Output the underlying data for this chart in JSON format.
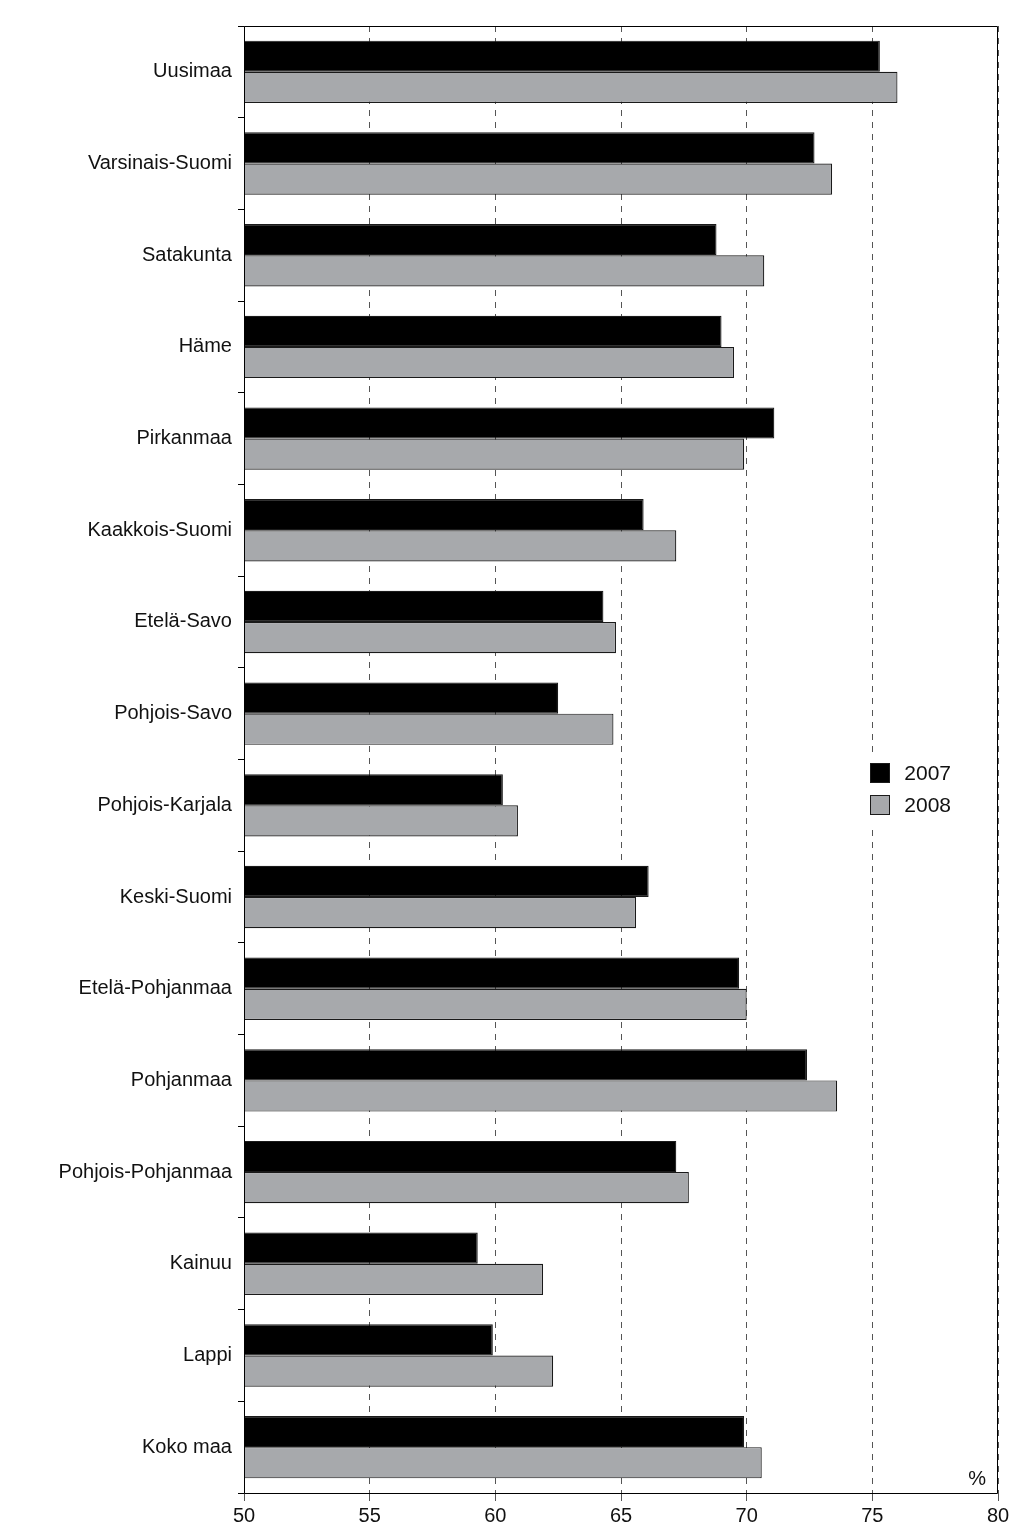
{
  "chart_data": {
    "type": "bar",
    "orientation": "horizontal",
    "xlabel": "%",
    "categories": [
      "Uusimaa",
      "Varsinais-Suomi",
      "Satakunta",
      "Häme",
      "Pirkanmaa",
      "Kaakkois-Suomi",
      "Etelä-Savo",
      "Pohjois-Savo",
      "Pohjois-Karjala",
      "Keski-Suomi",
      "Etelä-Pohjanmaa",
      "Pohjanmaa",
      "Pohjois-Pohjanmaa",
      "Kainuu",
      "Lappi",
      "Koko maa"
    ],
    "series": [
      {
        "name": "2007",
        "color": "#000000",
        "values": [
          75.3,
          72.7,
          68.8,
          69.0,
          71.1,
          65.9,
          64.3,
          62.5,
          60.3,
          66.1,
          69.7,
          72.4,
          67.2,
          59.3,
          59.9,
          69.9
        ]
      },
      {
        "name": "2008",
        "color": "#a7a9ac",
        "values": [
          76.0,
          73.4,
          70.7,
          69.5,
          69.9,
          67.2,
          64.8,
          64.7,
          60.9,
          65.6,
          70.0,
          73.6,
          67.7,
          61.9,
          62.3,
          70.6
        ]
      }
    ],
    "xlim": [
      50,
      80
    ],
    "xticks": [
      50,
      55,
      60,
      65,
      70,
      75,
      80
    ],
    "grid": "x",
    "legend": "right"
  }
}
